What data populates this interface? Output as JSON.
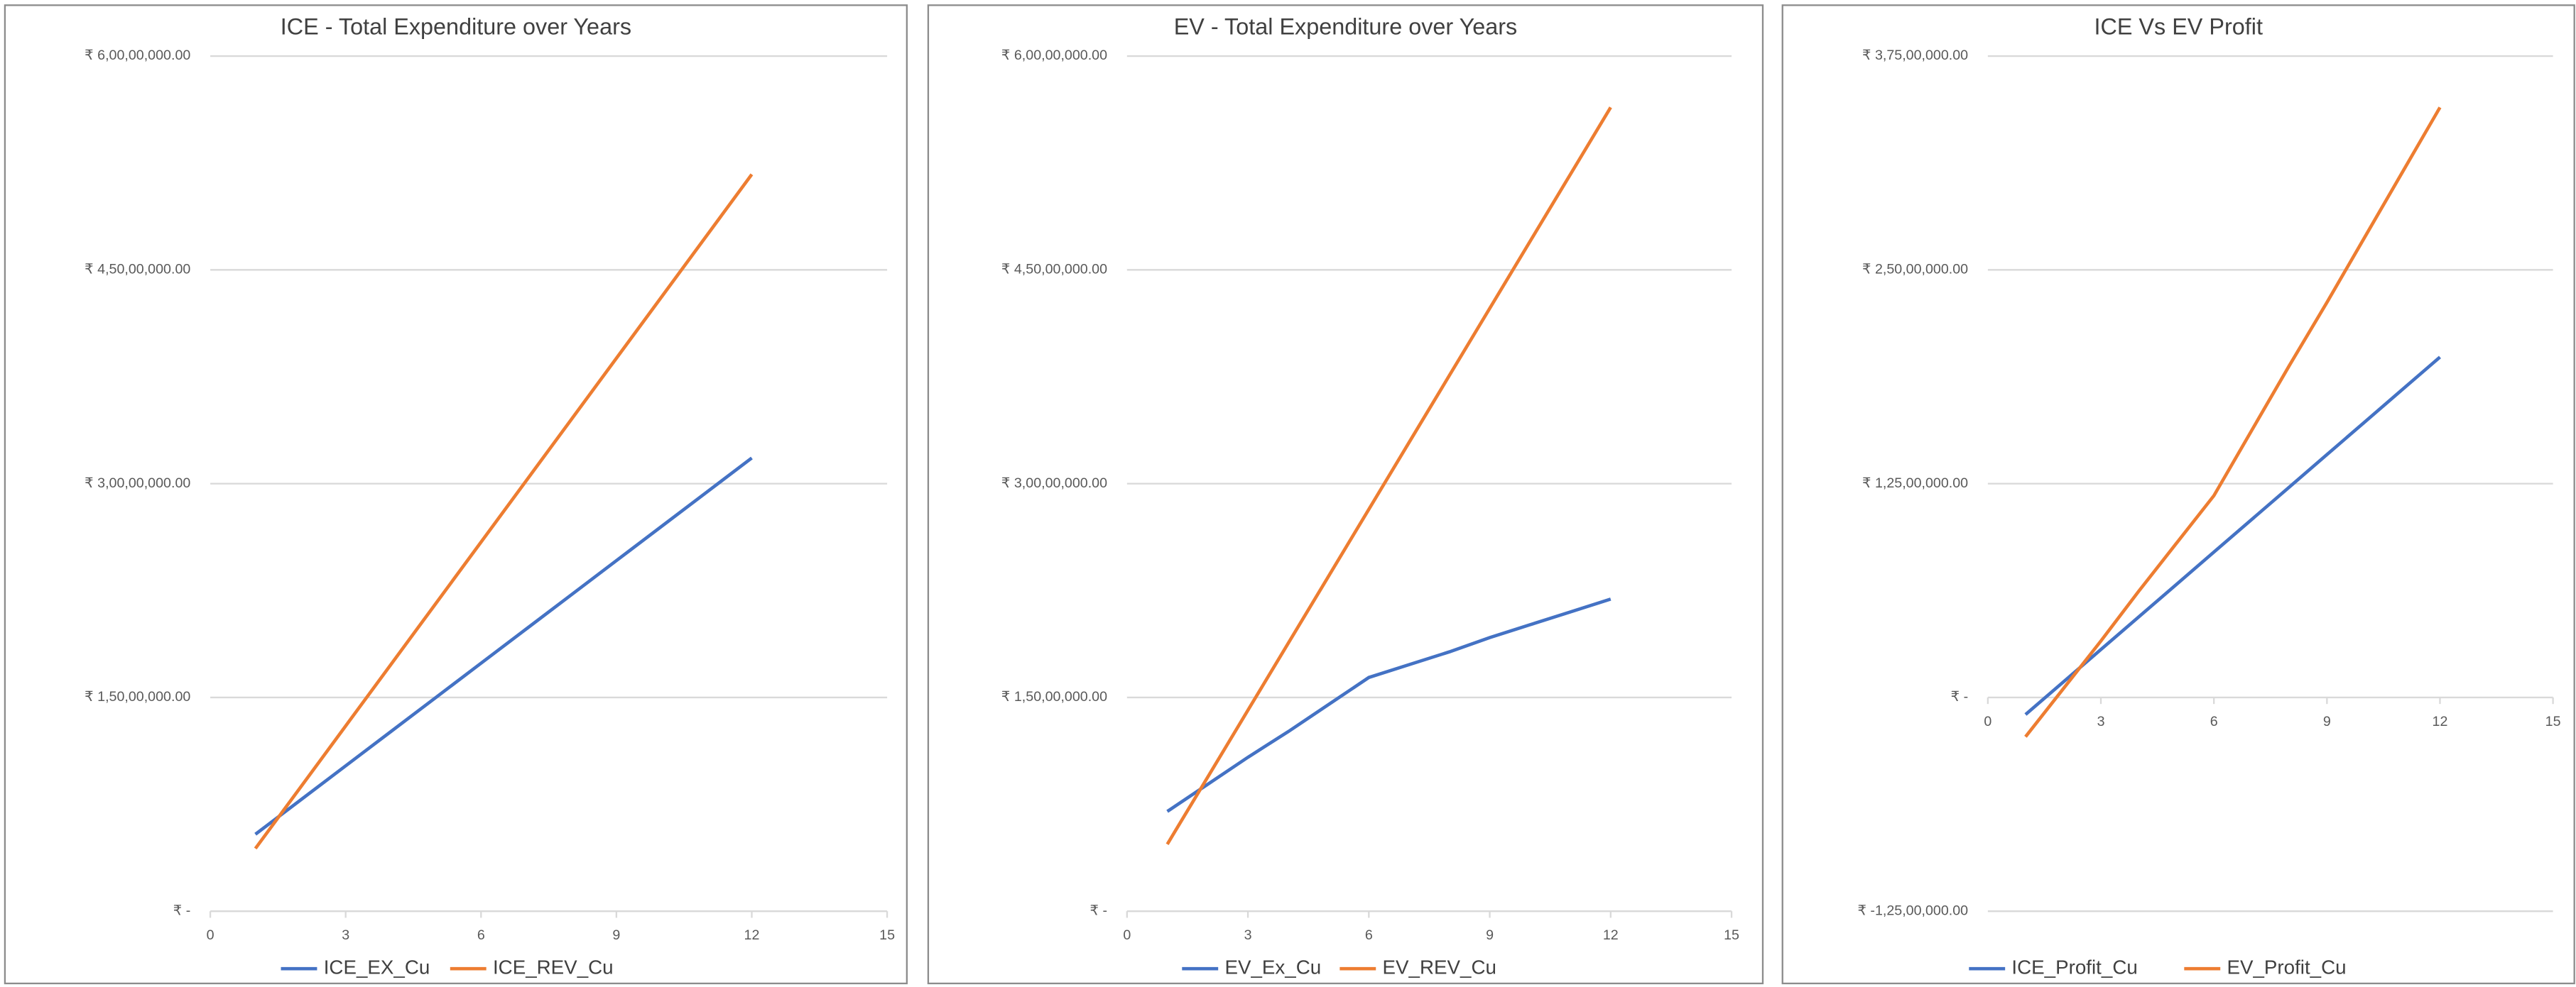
{
  "chart_data": [
    {
      "type": "line",
      "title": "ICE - Total Expenditure over Years",
      "x": [
        1,
        2,
        3,
        4,
        5,
        6,
        7,
        8,
        9,
        10,
        11,
        12
      ],
      "series": [
        {
          "name": "ICE_EX_Cu",
          "color": "#4472c4",
          "values": [
            5400000,
            7800000,
            10200000,
            12600000,
            15000000,
            17400000,
            19800000,
            22200000,
            24600000,
            27000000,
            29400000,
            31800000
          ]
        },
        {
          "name": "ICE_REV_Cu",
          "color": "#ed7d31",
          "values": [
            4400000,
            8700000,
            13000000,
            17300000,
            21600000,
            25900000,
            30200000,
            34500000,
            38800000,
            43100000,
            47400000,
            51700000
          ]
        }
      ],
      "xlim": [
        0,
        15
      ],
      "xticks": [
        0,
        3,
        6,
        9,
        12,
        15
      ],
      "ylim": [
        0,
        60000000
      ],
      "yticks": [
        {
          "value": 0,
          "label": "₹ -"
        },
        {
          "value": 15000000,
          "label": "₹ 1,50,00,000.00"
        },
        {
          "value": 30000000,
          "label": "₹ 3,00,00,000.00"
        },
        {
          "value": 45000000,
          "label": "₹ 4,50,00,000.00"
        },
        {
          "value": 60000000,
          "label": "₹ 6,00,00,000.00"
        }
      ],
      "grid": true
    },
    {
      "type": "line",
      "title": "EV - Total Expenditure over Years",
      "x": [
        1,
        2,
        3,
        4,
        5,
        6,
        7,
        8,
        9,
        10,
        11,
        12
      ],
      "series": [
        {
          "name": "EV_Ex_Cu",
          "color": "#4472c4",
          "values": [
            7000000,
            8900000,
            10800000,
            12600000,
            14500000,
            16400000,
            17300000,
            18200000,
            19200000,
            20100000,
            21000000,
            21900000
          ]
        },
        {
          "name": "EV_REV_Cu",
          "color": "#ed7d31",
          "values": [
            4700000,
            9400000,
            14100000,
            18800000,
            23500000,
            28200000,
            32900000,
            37600000,
            42300000,
            47000000,
            51700000,
            56400000
          ]
        }
      ],
      "xlim": [
        0,
        15
      ],
      "xticks": [
        0,
        3,
        6,
        9,
        12,
        15
      ],
      "ylim": [
        0,
        60000000
      ],
      "yticks": [
        {
          "value": 0,
          "label": "₹ -"
        },
        {
          "value": 15000000,
          "label": "₹ 1,50,00,000.00"
        },
        {
          "value": 30000000,
          "label": "₹ 3,00,00,000.00"
        },
        {
          "value": 45000000,
          "label": "₹ 4,50,00,000.00"
        },
        {
          "value": 60000000,
          "label": "₹ 6,00,00,000.00"
        }
      ],
      "grid": true
    },
    {
      "type": "line",
      "title": "ICE Vs EV Profit",
      "x": [
        1,
        2,
        3,
        4,
        5,
        6,
        7,
        8,
        9,
        10,
        11,
        12
      ],
      "series": [
        {
          "name": "ICE_Profit_Cu",
          "color": "#4472c4",
          "values": [
            -1000000,
            900000,
            2800000,
            4700000,
            6600000,
            8500000,
            10400000,
            12300000,
            14200000,
            16100000,
            18000000,
            19900000
          ]
        },
        {
          "name": "EV_Profit_Cu",
          "color": "#ed7d31",
          "values": [
            -2300000,
            500000,
            3300000,
            6200000,
            9000000,
            11800000,
            15600000,
            19400000,
            23100000,
            26900000,
            30700000,
            34500000
          ]
        }
      ],
      "xlim": [
        0,
        15
      ],
      "xticks": [
        0,
        3,
        6,
        9,
        12,
        15
      ],
      "ylim": [
        -12500000,
        37500000
      ],
      "yticks": [
        {
          "value": -12500000,
          "label": "₹ -1,25,00,000.00"
        },
        {
          "value": 0,
          "label": "₹ -"
        },
        {
          "value": 12500000,
          "label": "₹ 1,25,00,000.00"
        },
        {
          "value": 25000000,
          "label": "₹ 2,50,00,000.00"
        },
        {
          "value": 37500000,
          "label": "₹ 3,75,00,000.00"
        }
      ],
      "grid": true
    }
  ]
}
